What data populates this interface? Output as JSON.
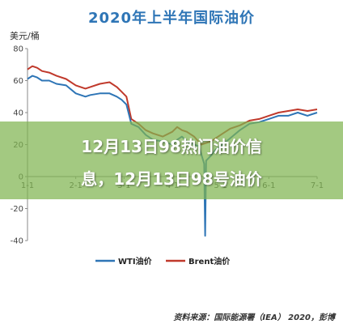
{
  "chart_data": {
    "type": "line",
    "title": "2020年上半年国际油价",
    "ylabel": "美元/桶",
    "xlabel": "",
    "ylim": [
      -40,
      80
    ],
    "yticks": [
      -40,
      -20,
      0,
      20,
      40,
      60,
      80
    ],
    "x_tick_labels": [
      "1-1",
      "2-1",
      "3-1",
      "4-1",
      "5-1",
      "6-1",
      "7-1"
    ],
    "x_range_months": [
      0,
      6
    ],
    "grid": false,
    "legend_position": "bottom",
    "series": [
      {
        "name": "WTI油价",
        "color": "#2e75b6",
        "points": [
          [
            0,
            61
          ],
          [
            0.1,
            63
          ],
          [
            0.2,
            62
          ],
          [
            0.3,
            60
          ],
          [
            0.45,
            60
          ],
          [
            0.6,
            58
          ],
          [
            0.8,
            57
          ],
          [
            1.0,
            52
          ],
          [
            1.2,
            50
          ],
          [
            1.3,
            51
          ],
          [
            1.5,
            52
          ],
          [
            1.7,
            52
          ],
          [
            1.85,
            50
          ],
          [
            1.95,
            48
          ],
          [
            2.05,
            45
          ],
          [
            2.15,
            33
          ],
          [
            2.3,
            31
          ],
          [
            2.45,
            26
          ],
          [
            2.6,
            23
          ],
          [
            2.8,
            22
          ],
          [
            3.0,
            20
          ],
          [
            3.1,
            23
          ],
          [
            3.2,
            25
          ],
          [
            3.3,
            22
          ],
          [
            3.45,
            20
          ],
          [
            3.55,
            19
          ],
          [
            3.62,
            12
          ],
          [
            3.66,
            8
          ],
          [
            3.68,
            -37
          ],
          [
            3.7,
            10
          ],
          [
            3.8,
            13
          ],
          [
            3.9,
            17
          ],
          [
            4.0,
            19
          ],
          [
            4.2,
            24
          ],
          [
            4.4,
            29
          ],
          [
            4.6,
            33
          ],
          [
            4.8,
            34
          ],
          [
            5.0,
            36
          ],
          [
            5.2,
            38
          ],
          [
            5.4,
            38
          ],
          [
            5.6,
            40
          ],
          [
            5.8,
            38
          ],
          [
            6.0,
            40
          ]
        ]
      },
      {
        "name": "Brent油价",
        "color": "#c0392b",
        "points": [
          [
            0,
            67
          ],
          [
            0.1,
            69
          ],
          [
            0.2,
            68
          ],
          [
            0.3,
            66
          ],
          [
            0.45,
            65
          ],
          [
            0.6,
            63
          ],
          [
            0.8,
            61
          ],
          [
            1.0,
            57
          ],
          [
            1.2,
            55
          ],
          [
            1.3,
            56
          ],
          [
            1.5,
            58
          ],
          [
            1.7,
            59
          ],
          [
            1.85,
            56
          ],
          [
            1.95,
            53
          ],
          [
            2.05,
            50
          ],
          [
            2.15,
            36
          ],
          [
            2.3,
            33
          ],
          [
            2.45,
            29
          ],
          [
            2.6,
            27
          ],
          [
            2.8,
            25
          ],
          [
            3.0,
            28
          ],
          [
            3.1,
            31
          ],
          [
            3.2,
            29
          ],
          [
            3.3,
            28
          ],
          [
            3.45,
            25
          ],
          [
            3.6,
            20
          ],
          [
            3.7,
            21
          ],
          [
            3.8,
            22
          ],
          [
            3.9,
            24
          ],
          [
            4.0,
            26
          ],
          [
            4.2,
            30
          ],
          [
            4.4,
            32
          ],
          [
            4.6,
            35
          ],
          [
            4.8,
            36
          ],
          [
            5.0,
            38
          ],
          [
            5.2,
            40
          ],
          [
            5.4,
            41
          ],
          [
            5.6,
            42
          ],
          [
            5.8,
            41
          ],
          [
            6.0,
            42
          ]
        ]
      }
    ]
  },
  "overlay": {
    "line1": "12月13日98热门油价信",
    "line2": "息，12月13日98号油价"
  },
  "source_note": "资料来源：国际能源署（IEA） 2020，彭博"
}
